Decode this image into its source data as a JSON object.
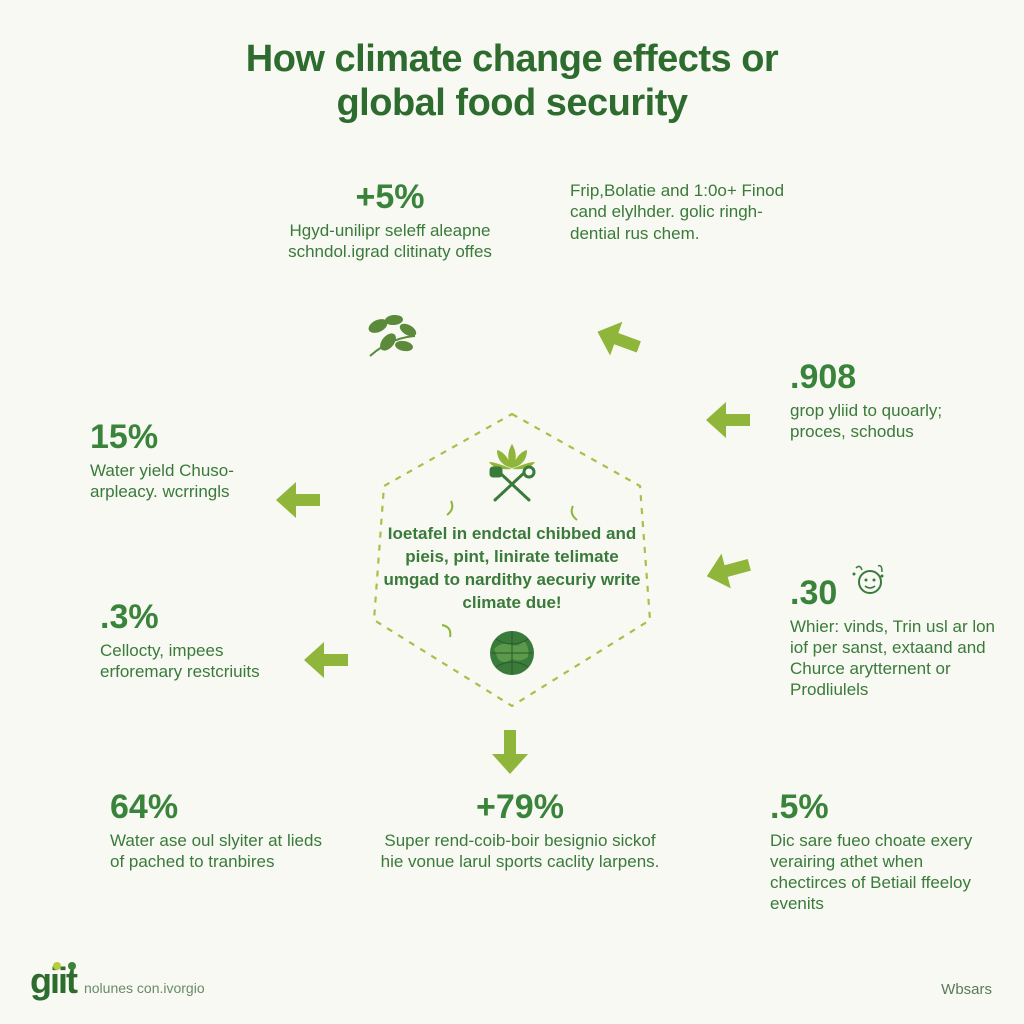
{
  "type": "infographic",
  "background_color": "#f7f9f2",
  "title": "How climate change effects or\nglobal food security",
  "title_color": "#2e6b2e",
  "title_fontsize": 38,
  "stat_color": "#3a833a",
  "stat_fontsize": 34,
  "desc_color": "#3a7a3a",
  "desc_fontsize": 17,
  "arrow_color": "#8fb53a",
  "hex_border_color": "#a6c04a",
  "center": {
    "text": "Ioetafel in endctal chibbed and pieis, pint, linirate telimate umgad to nardithy aecuriy write climate due!",
    "icon_color_light": "#8fb53a",
    "icon_color_dark": "#3a7a3a"
  },
  "items": [
    {
      "pos": "top",
      "stat": "+5%",
      "desc": "Hgyd-unilipr seleff aleapne schndol.igrad clitinaty offes"
    },
    {
      "pos": "top-right",
      "stat": "",
      "desc": "Frip,Bolatie and 1:0o+ Finod cand elylhder. golic ringh-dential rus chem."
    },
    {
      "pos": "right",
      "stat": ".908",
      "desc": "grop yliid to quoarly; proces, schodus"
    },
    {
      "pos": "right-lower",
      "stat": ".30",
      "desc": "Whier: vinds, Trin usl ar lon iof per sanst, extaand and Churce arytternent or Prodliulels",
      "extra_icon": true
    },
    {
      "pos": "bottom-right",
      "stat": ".5%",
      "desc": "Dic sare fueo choate exery verairing athet when chectirces of Betiail ffeeloy evenits"
    },
    {
      "pos": "bottom",
      "stat": "+79%",
      "desc": "Super rend-coib-boir besignio sickof hie vonue larul sports caclity larpens."
    },
    {
      "pos": "bottom-left",
      "stat": "64%",
      "desc": "Water ase oul slyiter at lieds of pached to tranbires"
    },
    {
      "pos": "left-lower",
      "stat": ".3%",
      "desc": "Cellocty, impees erforemary restcriuits"
    },
    {
      "pos": "left",
      "stat": "15%",
      "desc": "Water yield Chuso-arpleacy. wcrringls"
    }
  ],
  "footer": {
    "logo": "giit",
    "tagline": "nolunes con.ivorgio",
    "right": "Wbsars"
  }
}
